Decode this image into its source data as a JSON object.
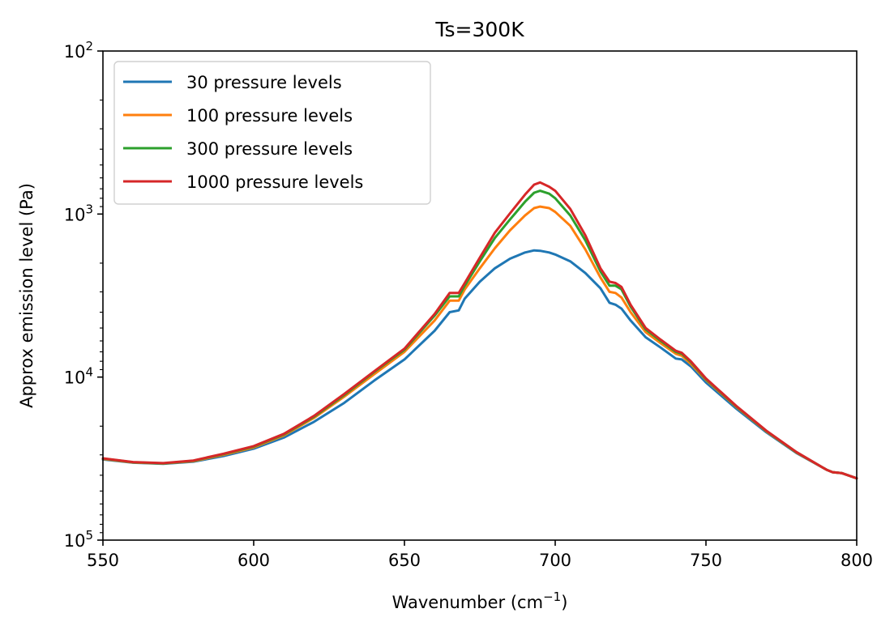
{
  "chart_data": {
    "type": "line",
    "title": "Ts=300K",
    "xlabel": "Wavenumber (cm",
    "xlabel_sup": "−1",
    "xlabel_end": ")",
    "ylabel": "Approx emission level (Pa)",
    "xlim": [
      550,
      800
    ],
    "ylim": [
      100000,
      100
    ],
    "y_scale": "log",
    "y_inverted": true,
    "x_ticks": [
      550,
      600,
      650,
      700,
      750,
      800
    ],
    "x_tick_labels": [
      "550",
      "600",
      "650",
      "700",
      "750",
      "800"
    ],
    "y_ticks": [
      100,
      1000,
      10000,
      100000
    ],
    "y_tick_labels": [
      {
        "base": "10",
        "exp": "2"
      },
      {
        "base": "10",
        "exp": "3"
      },
      {
        "base": "10",
        "exp": "4"
      },
      {
        "base": "10",
        "exp": "5"
      }
    ],
    "grid": false,
    "legend_position": "upper-left",
    "x": [
      550,
      560,
      570,
      580,
      590,
      600,
      610,
      620,
      630,
      640,
      650,
      660,
      665,
      668,
      670,
      675,
      680,
      685,
      690,
      693,
      695,
      698,
      700,
      705,
      710,
      715,
      718,
      720,
      722,
      725,
      730,
      735,
      740,
      742,
      745,
      750,
      760,
      770,
      780,
      790,
      792,
      795,
      800
    ],
    "series": [
      {
        "name": "30 pressure levels",
        "color": "#1f77b4",
        "values": [
          32000,
          33500,
          34000,
          33000,
          30500,
          27500,
          23500,
          18800,
          14400,
          10500,
          7800,
          5200,
          4000,
          3900,
          3300,
          2600,
          2150,
          1880,
          1720,
          1670,
          1680,
          1720,
          1770,
          1950,
          2300,
          2850,
          3500,
          3600,
          3800,
          4500,
          5700,
          6600,
          7700,
          7800,
          8600,
          10800,
          15600,
          21800,
          29200,
          37000,
          38300,
          38800,
          41800
        ]
      },
      {
        "name": "100 pressure levels",
        "color": "#ff7f0e",
        "values": [
          31800,
          33400,
          33900,
          32800,
          30000,
          27000,
          22800,
          17800,
          13200,
          9600,
          7000,
          4500,
          3400,
          3400,
          2900,
          2150,
          1620,
          1260,
          1020,
          920,
          900,
          920,
          970,
          1180,
          1650,
          2450,
          3000,
          3050,
          3250,
          4000,
          5300,
          6200,
          7200,
          7400,
          8300,
          10400,
          15200,
          21500,
          29000,
          37000,
          38300,
          38800,
          41800
        ]
      },
      {
        "name": "300 pressure levels",
        "color": "#2ca02c",
        "values": [
          31600,
          33300,
          33800,
          32600,
          29700,
          26700,
          22500,
          17500,
          12900,
          9300,
          6800,
          4200,
          3200,
          3200,
          2750,
          1950,
          1400,
          1080,
          840,
          740,
          720,
          750,
          800,
          1020,
          1450,
          2250,
          2750,
          2750,
          2900,
          3700,
          5100,
          6000,
          7000,
          7200,
          8100,
          10300,
          15100,
          21400,
          28900,
          37000,
          38300,
          38800,
          41800
        ]
      },
      {
        "name": "1000 pressure levels",
        "color": "#d62728",
        "values": [
          31500,
          33200,
          33700,
          32500,
          29500,
          26500,
          22300,
          17300,
          12700,
          9200,
          6700,
          4100,
          3050,
          3050,
          2650,
          1850,
          1300,
          990,
          760,
          660,
          640,
          680,
          720,
          930,
          1350,
          2150,
          2600,
          2650,
          2800,
          3600,
          5000,
          5900,
          6900,
          7100,
          8000,
          10200,
          15000,
          21300,
          28800,
          37000,
          38300,
          38800,
          41800
        ]
      }
    ]
  }
}
